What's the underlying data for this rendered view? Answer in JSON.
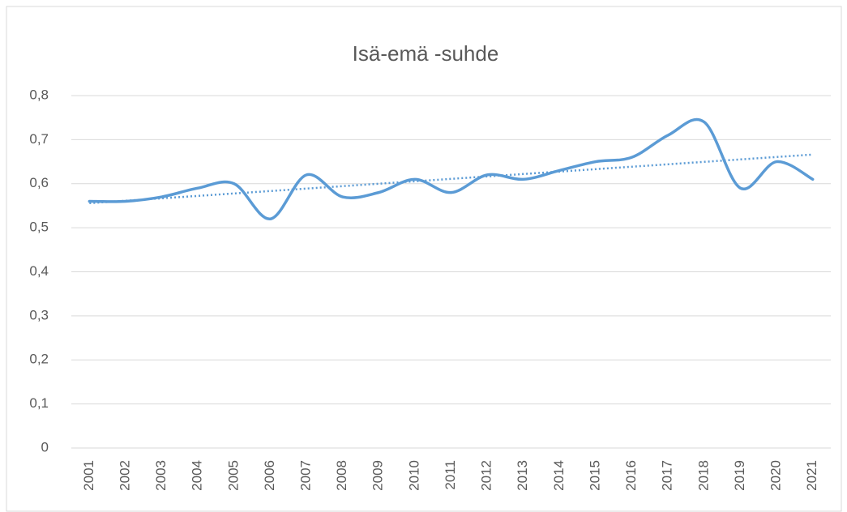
{
  "chart_data": {
    "type": "line",
    "title": "Isä-emä -suhde",
    "categories": [
      "2001",
      "2002",
      "2003",
      "2004",
      "2005",
      "2006",
      "2007",
      "2008",
      "2009",
      "2010",
      "2011",
      "2012",
      "2013",
      "2014",
      "2015",
      "2016",
      "2017",
      "2018",
      "2019",
      "2020",
      "2021"
    ],
    "series": [
      {
        "color": "#5b9bd5",
        "values": [
          0.56,
          0.56,
          0.57,
          0.59,
          0.6,
          0.52,
          0.62,
          0.57,
          0.58,
          0.61,
          0.58,
          0.62,
          0.61,
          0.63,
          0.65,
          0.66,
          0.71,
          0.74,
          0.59,
          0.65,
          0.61
        ]
      }
    ],
    "smooth": true,
    "trendline": "linear",
    "ylim": [
      0,
      0.8
    ],
    "yticks": [
      0,
      {
        "value": 0.1,
        "label": "0,1"
      },
      {
        "value": 0.2,
        "label": "0,2"
      },
      {
        "value": 0.3,
        "label": "0,3"
      },
      {
        "value": 0.4,
        "label": "0,4"
      },
      {
        "value": 0.5,
        "label": "0,5"
      },
      {
        "value": 0.6,
        "label": "0,6"
      },
      {
        "value": 0.7,
        "label": "0,7"
      },
      {
        "value": 0.8,
        "label": "0,8"
      }
    ],
    "grid": true
  }
}
